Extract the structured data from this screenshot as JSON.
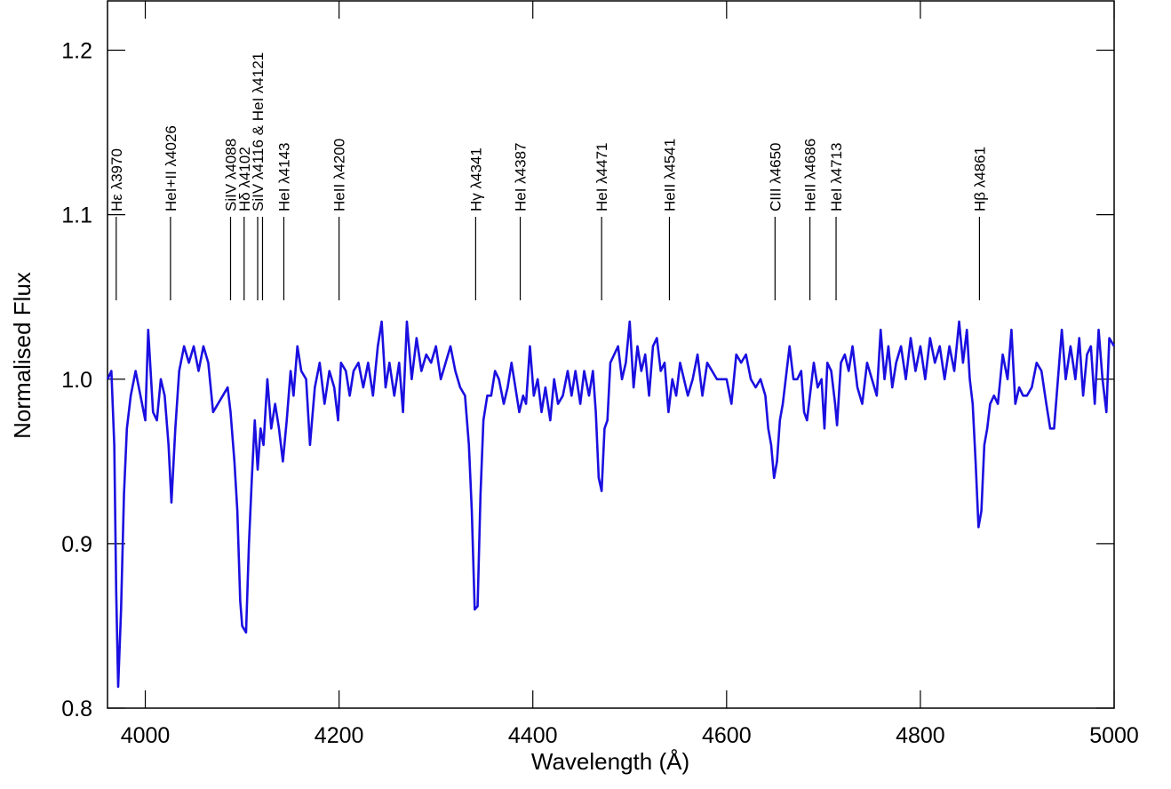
{
  "chart_data": {
    "type": "line",
    "xlabel": "Wavelength (Å)",
    "ylabel": "Normalised Flux",
    "color": "#1a0fe0",
    "xlim": [
      3961,
      5000
    ],
    "xticks": [
      4000,
      4200,
      4400,
      4600,
      4800,
      5000
    ],
    "ylim": [
      0.8,
      1.23
    ],
    "yticks": [
      0.8,
      0.9,
      {
        "value": 1,
        "label": "1.0"
      },
      1.1,
      1.2
    ],
    "x": [
      3961,
      3965,
      3968,
      3970,
      3972,
      3975,
      3978,
      3981,
      3985,
      3990,
      3995,
      4000,
      4003,
      4008,
      4012,
      4016,
      4020,
      4024,
      4027,
      4031,
      4035,
      4040,
      4045,
      4050,
      4055,
      4060,
      4065,
      4070,
      4075,
      4080,
      4085,
      4088,
      4092,
      4095,
      4098,
      4100,
      4104,
      4107,
      4110,
      4113,
      4116,
      4119,
      4122,
      4126,
      4130,
      4134,
      4138,
      4142,
      4146,
      4150,
      4153,
      4157,
      4161,
      4166,
      4170,
      4175,
      4180,
      4185,
      4190,
      4195,
      4199,
      4202,
      4207,
      4211,
      4215,
      4220,
      4225,
      4230,
      4235,
      4240,
      4244,
      4248,
      4252,
      4257,
      4262,
      4266,
      4270,
      4275,
      4280,
      4285,
      4290,
      4295,
      4300,
      4305,
      4310,
      4315,
      4320,
      4325,
      4330,
      4334,
      4337,
      4340,
      4343,
      4346,
      4349,
      4353,
      4357,
      4361,
      4365,
      4370,
      4374,
      4378,
      4382,
      4386,
      4390,
      4393,
      4397,
      4401,
      4405,
      4409,
      4413,
      4418,
      4422,
      4426,
      4431,
      4436,
      4440,
      4444,
      4449,
      4453,
      4458,
      4462,
      4465,
      4468,
      4471,
      4474,
      4477,
      4480,
      4484,
      4488,
      4492,
      4496,
      4500,
      4504,
      4508,
      4512,
      4516,
      4520,
      4524,
      4528,
      4532,
      4536,
      4540,
      4544,
      4548,
      4552,
      4556,
      4560,
      4565,
      4570,
      4575,
      4580,
      4585,
      4590,
      4595,
      4600,
      4605,
      4610,
      4615,
      4620,
      4625,
      4630,
      4635,
      4640,
      4643,
      4646,
      4649,
      4652,
      4655,
      4658,
      4661,
      4665,
      4669,
      4673,
      4677,
      4680,
      4683,
      4686,
      4690,
      4694,
      4698,
      4701,
      4704,
      4708,
      4712,
      4714,
      4718,
      4722,
      4726,
      4730,
      4735,
      4740,
      4745,
      4750,
      4755,
      4759,
      4763,
      4767,
      4771,
      4775,
      4780,
      4785,
      4790,
      4795,
      4800,
      4805,
      4810,
      4815,
      4820,
      4825,
      4830,
      4835,
      4840,
      4844,
      4848,
      4851,
      4854,
      4857,
      4860,
      4863,
      4866,
      4869,
      4872,
      4876,
      4880,
      4885,
      4890,
      4894,
      4898,
      4902,
      4906,
      4910,
      4915,
      4920,
      4925,
      4930,
      4934,
      4938,
      4942,
      4946,
      4950,
      4955,
      4960,
      4964,
      4968,
      4972,
      4976,
      4980,
      4984,
      4988,
      4992,
      4995,
      5000
    ],
    "values": [
      1.0,
      1.005,
      0.96,
      0.87,
      0.813,
      0.86,
      0.93,
      0.97,
      0.99,
      1.005,
      0.99,
      0.975,
      1.03,
      0.98,
      0.975,
      1.0,
      0.99,
      0.96,
      0.925,
      0.97,
      1.005,
      1.02,
      1.01,
      1.02,
      1.005,
      1.02,
      1.01,
      0.98,
      0.985,
      0.99,
      0.995,
      0.98,
      0.95,
      0.92,
      0.865,
      0.85,
      0.846,
      0.9,
      0.94,
      0.975,
      0.945,
      0.97,
      0.96,
      1.0,
      0.97,
      0.985,
      0.97,
      0.95,
      0.975,
      1.005,
      0.99,
      1.02,
      1.005,
      1.0,
      0.96,
      0.995,
      1.01,
      0.985,
      1.005,
      0.995,
      0.975,
      1.01,
      1.005,
      0.99,
      1.005,
      1.01,
      0.995,
      1.01,
      0.99,
      1.02,
      1.035,
      0.995,
      1.01,
      0.99,
      1.01,
      0.98,
      1.035,
      1.0,
      1.025,
      1.005,
      1.015,
      1.01,
      1.02,
      1.0,
      1.01,
      1.02,
      1.005,
      0.995,
      0.99,
      0.96,
      0.92,
      0.86,
      0.862,
      0.93,
      0.975,
      0.99,
      0.99,
      1.005,
      1.0,
      0.985,
      0.995,
      1.01,
      0.995,
      0.98,
      0.99,
      0.985,
      1.02,
      0.99,
      1.0,
      0.98,
      0.995,
      0.975,
      1.0,
      0.985,
      0.99,
      1.005,
      0.99,
      1.005,
      0.985,
      1.005,
      0.99,
      1.005,
      0.98,
      0.94,
      0.932,
      0.97,
      0.975,
      1.01,
      1.015,
      1.02,
      1.0,
      1.01,
      1.035,
      0.995,
      1.02,
      1.005,
      1.015,
      0.99,
      1.02,
      1.025,
      1.005,
      1.01,
      0.98,
      1.0,
      0.99,
      1.01,
      1.0,
      0.99,
      1.0,
      1.015,
      0.99,
      1.01,
      1.005,
      1.0,
      1.0,
      1.0,
      0.985,
      1.015,
      1.01,
      1.015,
      1.0,
      0.995,
      1.0,
      0.99,
      0.97,
      0.96,
      0.94,
      0.95,
      0.975,
      0.985,
      1.0,
      1.02,
      1.0,
      1.0,
      1.005,
      0.98,
      0.975,
      0.99,
      1.01,
      0.995,
      1.0,
      0.97,
      1.01,
      1.005,
      0.985,
      0.972,
      1.01,
      1.015,
      1.005,
      1.02,
      0.995,
      0.985,
      1.01,
      1.0,
      0.99,
      1.03,
      1.0,
      1.02,
      0.995,
      1.01,
      1.02,
      1.0,
      1.025,
      1.005,
      1.02,
      1.0,
      1.025,
      1.01,
      1.02,
      1.0,
      1.02,
      1.005,
      1.035,
      1.01,
      1.03,
      1.0,
      0.985,
      0.95,
      0.91,
      0.92,
      0.96,
      0.97,
      0.985,
      0.99,
      0.985,
      1.015,
      1.0,
      1.03,
      0.985,
      0.995,
      0.99,
      0.99,
      0.995,
      1.01,
      1.005,
      0.985,
      0.97,
      0.97,
      1.0,
      1.03,
      1.0,
      1.02,
      1.0,
      1.025,
      0.99,
      1.015,
      1.02,
      0.985,
      1.03,
      1.0,
      0.98,
      1.025,
      1.02
    ],
    "annotations": [
      {
        "label": "Hε λ3970",
        "x": [
          3970
        ]
      },
      {
        "label": "HeI+II λ4026",
        "x": [
          4026
        ]
      },
      {
        "label": "SiIV λ4088",
        "x": [
          4088
        ]
      },
      {
        "label": "Hδ λ4102",
        "x": [
          4102
        ]
      },
      {
        "label": "SiIV λ4116 & HeI λ4121",
        "x": [
          4116,
          4121
        ]
      },
      {
        "label": "HeI λ4143",
        "x": [
          4143
        ]
      },
      {
        "label": "HeII λ4200",
        "x": [
          4200
        ]
      },
      {
        "label": "Hγ λ4341",
        "x": [
          4341
        ]
      },
      {
        "label": "HeI λ4387",
        "x": [
          4387
        ]
      },
      {
        "label": "HeI λ4471",
        "x": [
          4471
        ]
      },
      {
        "label": "HeII λ4541",
        "x": [
          4541
        ]
      },
      {
        "label": "CIII λ4650",
        "x": [
          4650
        ]
      },
      {
        "label": "HeII λ4686",
        "x": [
          4686
        ]
      },
      {
        "label": "HeI λ4713",
        "x": [
          4713
        ]
      },
      {
        "label": "Hβ λ4861",
        "x": [
          4861
        ]
      }
    ]
  }
}
